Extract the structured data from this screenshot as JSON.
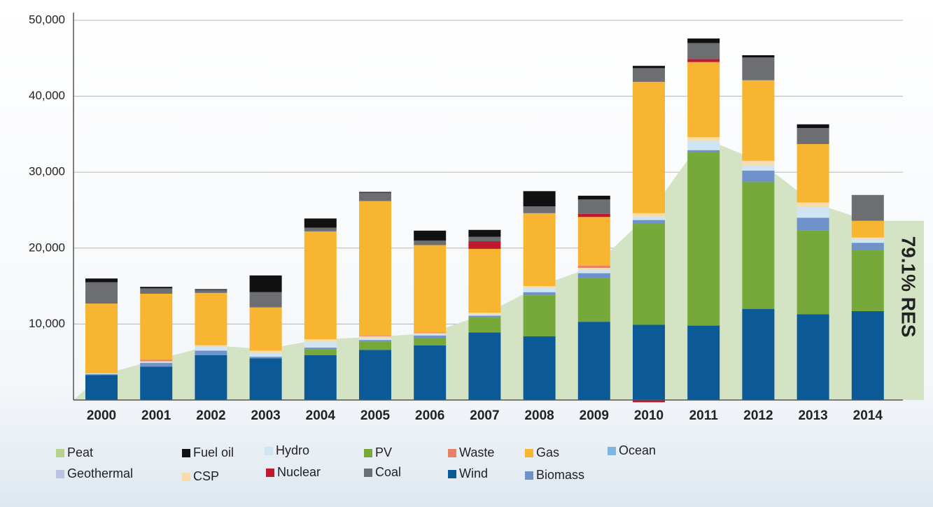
{
  "chart_data": {
    "type": "bar",
    "stacked": true,
    "categories": [
      "2000",
      "2001",
      "2002",
      "2003",
      "2004",
      "2005",
      "2006",
      "2007",
      "2008",
      "2009",
      "2010",
      "2011",
      "2012",
      "2013",
      "2014"
    ],
    "ylim": [
      0,
      50000
    ],
    "yticks": [
      {
        "value": 10000,
        "label": "10,000"
      },
      {
        "value": 20000,
        "label": "20,000"
      },
      {
        "value": 30000,
        "label": "30,000"
      },
      {
        "value": 40000,
        "label": "40,000"
      },
      {
        "value": 50000,
        "label": "50,000"
      }
    ],
    "grid": true,
    "area": {
      "label": "79.1% RES",
      "color": "#d5e3c5",
      "values": [
        3300,
        5300,
        7200,
        6700,
        8000,
        8300,
        8800,
        11300,
        15000,
        17600,
        24500,
        34500,
        31500,
        26000,
        23600
      ]
    },
    "series": [
      {
        "name": "Wind",
        "color": "#0b5a97",
        "values": [
          3300,
          4400,
          5900,
          5500,
          5900,
          6600,
          7200,
          8900,
          8400,
          10300,
          9900,
          9800,
          12000,
          11300,
          11700
        ]
      },
      {
        "name": "PV",
        "color": "#76a83a",
        "values": [
          0,
          0,
          0,
          0,
          800,
          1100,
          1000,
          2000,
          5400,
          5800,
          13300,
          22800,
          16700,
          11000,
          8100
        ]
      },
      {
        "name": "Biomass",
        "color": "#6f92cb",
        "values": [
          100,
          500,
          600,
          200,
          200,
          200,
          300,
          200,
          400,
          600,
          500,
          300,
          1500,
          1700,
          900
        ]
      },
      {
        "name": "Ocean",
        "color": "#7fb6e0",
        "values": [
          0,
          0,
          0,
          0,
          0,
          0,
          0,
          0,
          0,
          0,
          0,
          0,
          0,
          0,
          0
        ]
      },
      {
        "name": "Geothermal",
        "color": "#b9c5e2",
        "values": [
          0,
          0,
          0,
          0,
          0,
          0,
          0,
          0,
          0,
          0,
          0,
          0,
          0,
          0,
          0
        ]
      },
      {
        "name": "Hydro",
        "color": "#cfe5f3",
        "values": [
          100,
          200,
          500,
          500,
          800,
          300,
          200,
          200,
          600,
          500,
          500,
          1200,
          700,
          1400,
          500
        ]
      },
      {
        "name": "CSP",
        "color": "#f9dca8",
        "values": [
          0,
          0,
          200,
          300,
          300,
          200,
          100,
          200,
          200,
          200,
          400,
          500,
          600,
          600,
          200
        ]
      },
      {
        "name": "Waste",
        "color": "#e8806a",
        "values": [
          0,
          200,
          0,
          0,
          0,
          100,
          100,
          0,
          0,
          300,
          0,
          0,
          0,
          0,
          0
        ]
      },
      {
        "name": "Gas",
        "color": "#f7b531",
        "values": [
          9200,
          8700,
          6900,
          5700,
          14200,
          17700,
          11500,
          8400,
          9600,
          6400,
          17300,
          9900,
          10600,
          7700,
          2200
        ]
      },
      {
        "name": "Nuclear",
        "color": "#c0182c",
        "values": [
          0,
          0,
          0,
          0,
          0,
          0,
          0,
          1000,
          0,
          400,
          -300,
          400,
          0,
          0,
          0
        ]
      },
      {
        "name": "Coal",
        "color": "#6d6e71",
        "values": [
          2800,
          700,
          400,
          2000,
          500,
          1100,
          600,
          600,
          900,
          1900,
          1800,
          2100,
          3000,
          2100,
          3400
        ]
      },
      {
        "name": "Fuel oil",
        "color": "#111111",
        "values": [
          500,
          200,
          100,
          2200,
          1200,
          100,
          1300,
          900,
          2000,
          500,
          300,
          600,
          300,
          500,
          0
        ]
      },
      {
        "name": "Peat",
        "color": "#b7d28e",
        "values": [
          0,
          0,
          0,
          0,
          0,
          0,
          0,
          0,
          0,
          0,
          0,
          0,
          0,
          0,
          0
        ]
      }
    ]
  }
}
